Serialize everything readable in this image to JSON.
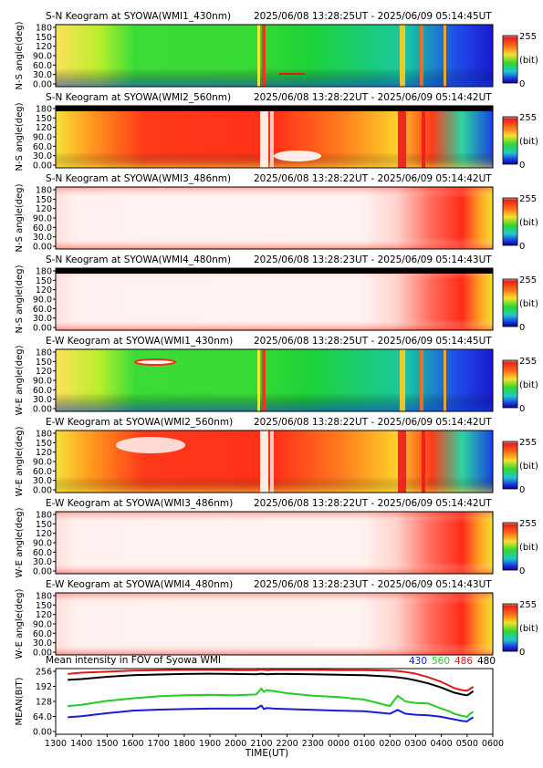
{
  "colors": {
    "c430": "#1a1adc",
    "c560": "#22cc22",
    "c486": "#e01818",
    "c480": "#000000"
  },
  "chart_data": [
    {
      "type": "heatmap",
      "title": "S-N Keogram at SYOWA(WMI1_430nm)",
      "time_range": "2025/06/08 13:28:25UT - 2025/06/09 05:14:45UT",
      "ylabel": "N-S angle(deg)",
      "yticks": [
        "180",
        "150",
        "120",
        "90.0",
        "60.0",
        "30.0",
        "0.00"
      ],
      "ylim": [
        0,
        180
      ],
      "colorbar": {
        "max_label": "255",
        "unit_label": "(bit)",
        "min_label": "0"
      },
      "profile": "green"
    },
    {
      "type": "heatmap",
      "title": "S-N Keogram at SYOWA(WMI2_560nm)",
      "time_range": "2025/06/08 13:28:22UT - 2025/06/09 05:14:42UT",
      "ylabel": "N-S angle(deg)",
      "yticks": [
        "180",
        "150",
        "120",
        "90.0",
        "60.0",
        "30.0",
        "0.00"
      ],
      "ylim": [
        0,
        180
      ],
      "colorbar": {
        "max_label": "255",
        "unit_label": "(bit)",
        "min_label": "0"
      },
      "profile": "red"
    },
    {
      "type": "heatmap",
      "title": "S-N Keogram at SYOWA(WMI3_486nm)",
      "time_range": "2025/06/08 13:28:22UT - 2025/06/09 05:14:42UT",
      "ylabel": "N-S angle(deg)",
      "yticks": [
        "180",
        "150",
        "120",
        "90.0",
        "60.0",
        "30.0",
        "0.00"
      ],
      "ylim": [
        0,
        180
      ],
      "colorbar": {
        "max_label": "255",
        "unit_label": "(bit)",
        "min_label": "0"
      },
      "profile": "white"
    },
    {
      "type": "heatmap",
      "title": "S-N Keogram at SYOWA(WMI4_480nm)",
      "time_range": "2025/06/08 13:28:23UT - 2025/06/09 05:14:43UT",
      "ylabel": "N-S angle(deg)",
      "yticks": [
        "180",
        "150",
        "120",
        "90.0",
        "60.0",
        "30.0",
        "0.00"
      ],
      "ylim": [
        0,
        180
      ],
      "colorbar": {
        "max_label": "255",
        "unit_label": "(bit)",
        "min_label": "0"
      },
      "profile": "white"
    },
    {
      "type": "heatmap",
      "title": "E-W Keogram at SYOWA(WMI1_430nm)",
      "time_range": "2025/06/08 13:28:25UT - 2025/06/09 05:14:45UT",
      "ylabel": "W-E angle(deg)",
      "yticks": [
        "180",
        "150",
        "120",
        "90.0",
        "60.0",
        "30.0",
        "0.00"
      ],
      "ylim": [
        0,
        180
      ],
      "colorbar": {
        "max_label": "255",
        "unit_label": "(bit)",
        "min_label": "0"
      },
      "profile": "green"
    },
    {
      "type": "heatmap",
      "title": "E-W Keogram at SYOWA(WMI2_560nm)",
      "time_range": "2025/06/08 13:28:22UT - 2025/06/09 05:14:42UT",
      "ylabel": "W-E angle(deg)",
      "yticks": [
        "180",
        "150",
        "120",
        "90.0",
        "60.0",
        "30.0",
        "0.00"
      ],
      "ylim": [
        0,
        180
      ],
      "colorbar": {
        "max_label": "255",
        "unit_label": "(bit)",
        "min_label": "0"
      },
      "profile": "red"
    },
    {
      "type": "heatmap",
      "title": "E-W Keogram at SYOWA(WMI3_486nm)",
      "time_range": "2025/06/08 13:28:22UT - 2025/06/09 05:14:42UT",
      "ylabel": "W-E angle(deg)",
      "yticks": [
        "180",
        "150",
        "120",
        "90.0",
        "60.0",
        "30.0",
        "0.00"
      ],
      "ylim": [
        0,
        180
      ],
      "colorbar": {
        "max_label": "255",
        "unit_label": "(bit)",
        "min_label": "0"
      },
      "profile": "white"
    },
    {
      "type": "heatmap",
      "title": "E-W Keogram at SYOWA(WMI4_480nm)",
      "time_range": "2025/06/08 13:28:23UT - 2025/06/09 05:14:43UT",
      "ylabel": "W-E angle(deg)",
      "yticks": [
        "180",
        "150",
        "120",
        "90.0",
        "60.0",
        "30.0",
        "0.00"
      ],
      "ylim": [
        0,
        180
      ],
      "colorbar": {
        "max_label": "255",
        "unit_label": "(bit)",
        "min_label": "0"
      },
      "profile": "white"
    },
    {
      "type": "line",
      "title": "Mean intensity in FOV of Syowa WMI",
      "xlabel": "TIME(UT)",
      "ylabel": "MEAN(BIT)",
      "ylim": [
        0,
        256
      ],
      "yticks": [
        "256",
        "192",
        "128",
        "64.0",
        "0.00"
      ],
      "xlim": [
        13.0,
        30.0
      ],
      "xticks": [
        "1300",
        "1400",
        "1500",
        "1600",
        "1700",
        "1800",
        "1900",
        "2000",
        "2100",
        "2200",
        "2300",
        "0000",
        "0100",
        "0200",
        "0300",
        "0400",
        "0500",
        "0600"
      ],
      "x": [
        13.47,
        14.0,
        15.0,
        16.0,
        17.0,
        18.0,
        19.0,
        20.0,
        20.8,
        21.0,
        21.1,
        21.2,
        21.5,
        22.0,
        23.0,
        24.0,
        25.0,
        26.0,
        26.3,
        26.6,
        27.0,
        27.5,
        28.0,
        28.3,
        28.5,
        28.8,
        29.0,
        29.1,
        29.24
      ],
      "series": [
        {
          "name": "486",
          "color_key": "c486",
          "values": [
            235,
            240,
            244,
            248,
            250,
            251,
            251,
            250,
            250,
            252,
            251,
            250,
            251,
            251,
            251,
            250,
            250,
            248,
            246,
            243,
            236,
            222,
            204,
            190,
            180,
            172,
            170,
            176,
            185
          ]
        },
        {
          "name": "480",
          "color_key": "c480",
          "values": [
            212,
            215,
            224,
            230,
            233,
            235,
            236,
            235,
            234,
            236,
            235,
            234,
            235,
            235,
            234,
            232,
            230,
            225,
            222,
            218,
            210,
            198,
            182,
            170,
            162,
            155,
            152,
            158,
            168
          ]
        },
        {
          "name": "560",
          "color_key": "c560",
          "values": [
            110,
            115,
            130,
            140,
            148,
            152,
            154,
            152,
            155,
            178,
            165,
            172,
            168,
            160,
            150,
            145,
            135,
            110,
            150,
            128,
            122,
            120,
            100,
            90,
            80,
            72,
            68,
            78,
            88
          ]
        },
        {
          "name": "430",
          "color_key": "c430",
          "values": [
            66,
            70,
            82,
            92,
            96,
            98,
            100,
            100,
            100,
            112,
            98,
            102,
            100,
            98,
            95,
            92,
            90,
            80,
            95,
            80,
            76,
            74,
            68,
            62,
            58,
            52,
            50,
            58,
            66
          ]
        }
      ]
    }
  ]
}
